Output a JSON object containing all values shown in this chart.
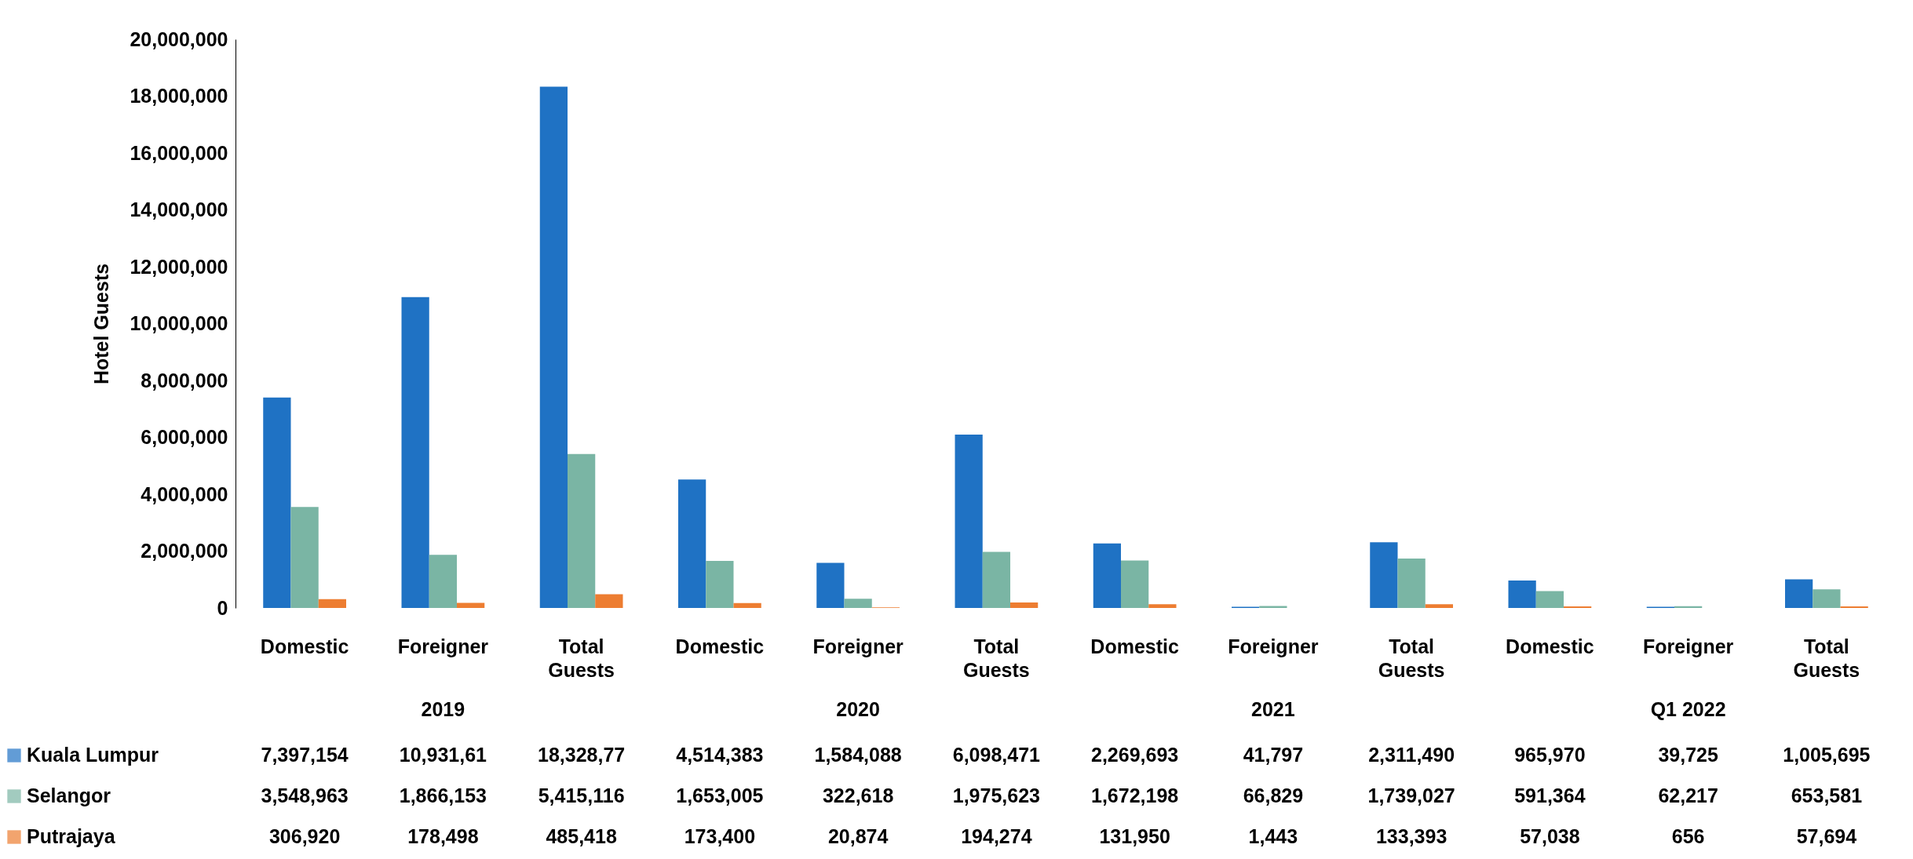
{
  "chart_data": {
    "type": "bar",
    "ylabel": "Hotel Guests",
    "categories": [
      "Domestic",
      "Foreigner",
      "Total Guests",
      "Domestic",
      "Foreigner",
      "Total Guests",
      "Domestic",
      "Foreigner",
      "Total Guests",
      "Domestic",
      "Foreigner",
      "Total Guests"
    ],
    "annotations": [
      "2019",
      "2020",
      "2021",
      "Q1 2022"
    ],
    "ylim": [
      0,
      20000000
    ],
    "yticks": [
      0,
      {
        "value": 2000000,
        "label": "2,000,000"
      },
      {
        "value": 4000000,
        "label": "4,000,000"
      },
      {
        "value": 6000000,
        "label": "6,000,000"
      },
      {
        "value": 8000000,
        "label": "8,000,000"
      },
      {
        "value": 10000000,
        "label": "10,000,000"
      },
      {
        "value": 12000000,
        "label": "12,000,000"
      },
      {
        "value": 14000000,
        "label": "14,000,000"
      },
      {
        "value": 16000000,
        "label": "16,000,000"
      },
      {
        "value": 18000000,
        "label": "18,000,000"
      },
      {
        "value": 20000000,
        "label": "20,000,000"
      }
    ],
    "grid": false,
    "legend": "bottom",
    "series": [
      {
        "name": "Kuala Lumpur",
        "color": "#1f72c4",
        "values": [
          7397154,
          10931610,
          18328770,
          4514383,
          1584088,
          6098471,
          2269693,
          41797,
          2311490,
          965970,
          39725,
          1005695
        ],
        "value_labels": [
          "7,397,154",
          "10,931,61",
          "18,328,77",
          "4,514,383",
          "1,584,088",
          "6,098,471",
          "2,269,693",
          "41,797",
          "2,311,490",
          "965,970",
          "39,725",
          "1,005,695"
        ]
      },
      {
        "name": "Selangor",
        "color": "#7ab5a4",
        "values": [
          3548963,
          1866153,
          5415116,
          1653005,
          322618,
          1975623,
          1672198,
          66829,
          1739027,
          591364,
          62217,
          653581
        ],
        "value_labels": [
          "3,548,963",
          "1,866,153",
          "5,415,116",
          "1,653,005",
          "322,618",
          "1,975,623",
          "1,672,198",
          "66,829",
          "1,739,027",
          "591,364",
          "62,217",
          "653,581"
        ]
      },
      {
        "name": "Putrajaya",
        "color": "#ed7d31",
        "values": [
          306920,
          178498,
          485418,
          173400,
          20874,
          194274,
          131950,
          1443,
          133393,
          57038,
          656,
          57694
        ],
        "value_labels": [
          "306,920",
          "178,498",
          "485,418",
          "173,400",
          "20,874",
          "194,274",
          "131,950",
          "1,443",
          "133,393",
          "57,038",
          "656",
          "57,694"
        ]
      }
    ]
  }
}
